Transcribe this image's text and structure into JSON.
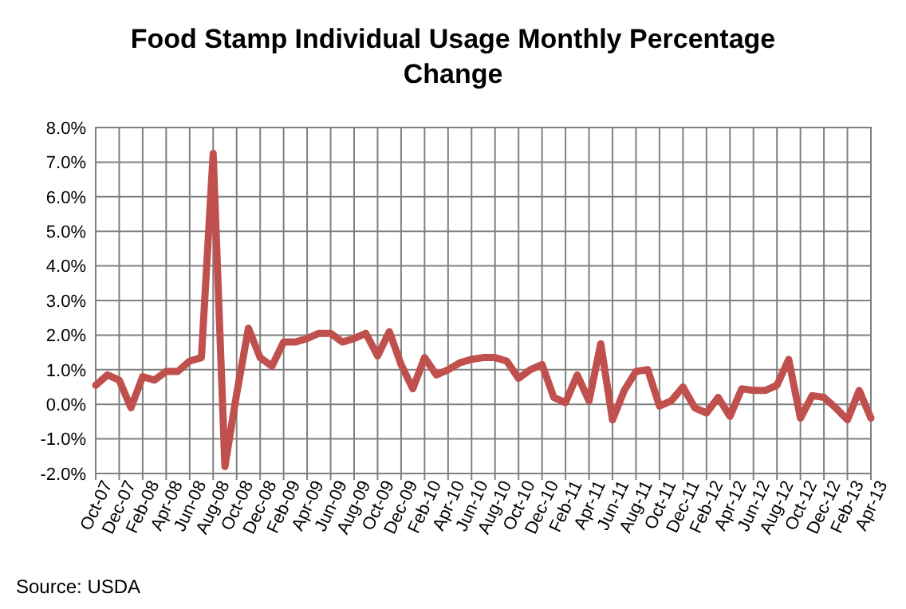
{
  "chart_data": {
    "type": "line",
    "title": "Food Stamp Individual Usage Monthly Percentage Change",
    "categories": [
      "Oct-07",
      null,
      "Dec-07",
      null,
      "Feb-08",
      null,
      "Apr-08",
      null,
      "Jun-08",
      null,
      "Aug-08",
      null,
      "Oct-08",
      null,
      "Dec-08",
      null,
      "Feb-09",
      null,
      "Apr-09",
      null,
      "Jun-09",
      null,
      "Aug-09",
      null,
      "Oct-09",
      null,
      "Dec-09",
      null,
      "Feb-10",
      null,
      "Apr-10",
      null,
      "Jun-10",
      null,
      "Aug-10",
      null,
      "Oct-10",
      null,
      "Dec-10",
      null,
      "Feb-11",
      null,
      "Apr-11",
      null,
      "Jun-11",
      null,
      "Aug-11",
      null,
      "Oct-11",
      null,
      "Dec-11",
      null,
      "Feb-12",
      null,
      "Apr-12",
      null,
      "Jun-12",
      null,
      "Aug-12",
      null,
      "Oct-12",
      null,
      "Dec-12",
      null,
      "Feb-13",
      null,
      "Apr-13"
    ],
    "series": [
      {
        "color": "#c0504d",
        "values": [
          0.55,
          0.85,
          0.7,
          -0.1,
          0.8,
          0.7,
          0.95,
          0.95,
          1.25,
          1.35,
          7.25,
          -1.8,
          0.3,
          2.2,
          1.35,
          1.1,
          1.8,
          1.8,
          1.9,
          2.05,
          2.05,
          1.8,
          1.9,
          2.05,
          1.4,
          2.1,
          1.15,
          0.45,
          1.35,
          0.85,
          1.0,
          1.2,
          1.3,
          1.35,
          1.35,
          1.25,
          0.75,
          1.0,
          1.15,
          0.2,
          0.05,
          0.85,
          0.1,
          1.75,
          -0.45,
          0.4,
          0.95,
          1.0,
          -0.05,
          0.1,
          0.5,
          -0.1,
          -0.25,
          0.2,
          -0.35,
          0.45,
          0.4,
          0.4,
          0.55,
          1.3,
          -0.4,
          0.25,
          0.2,
          -0.1,
          -0.45,
          0.4,
          -0.4
        ]
      }
    ],
    "ylim": [
      -2,
      8
    ],
    "yticks": [
      {
        "value": -2,
        "label": "-2.0%"
      },
      {
        "value": -1,
        "label": "-1.0%"
      },
      {
        "value": 0,
        "label": "0.0%"
      },
      {
        "value": 1,
        "label": "1.0%"
      },
      {
        "value": 2,
        "label": "2.0%"
      },
      {
        "value": 3,
        "label": "3.0%"
      },
      {
        "value": 4,
        "label": "4.0%"
      },
      {
        "value": 5,
        "label": "5.0%"
      },
      {
        "value": 6,
        "label": "6.0%"
      },
      {
        "value": 7,
        "label": "7.0%"
      },
      {
        "value": 8,
        "label": "8.0%"
      }
    ],
    "grid": true,
    "line_style": "solid",
    "marker": "none",
    "annotations": [
      "Source: USDA"
    ]
  }
}
